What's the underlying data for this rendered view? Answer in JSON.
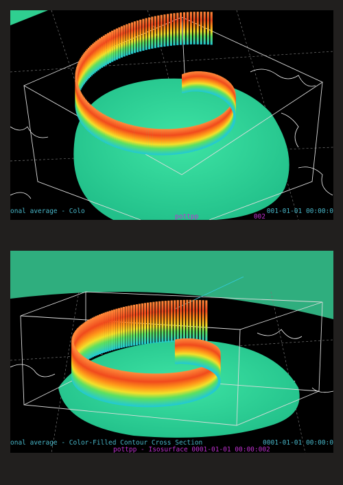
{
  "panels": [
    {
      "caption_left": "onal average - Colo",
      "caption_right": "001-01-01 00:00:0",
      "caption_second": "pottpp",
      "caption_second_right": "002"
    },
    {
      "caption_left": "onal average - Color-Filled Contour Cross Section",
      "caption_right": "0001-01-01 00:00:0",
      "caption_second": "pottpp - Isosurface 0001-01-01 00:00:002",
      "caption_second_right": ""
    }
  ]
}
